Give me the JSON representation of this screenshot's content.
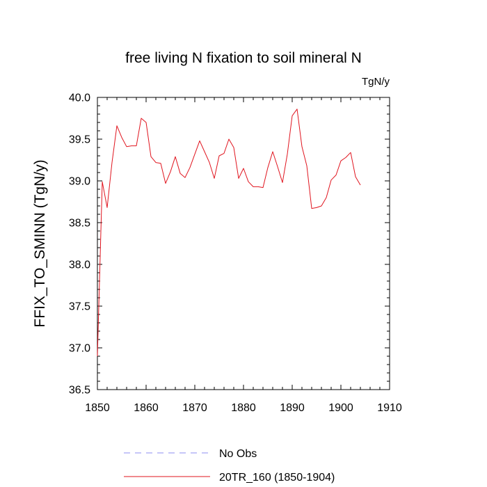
{
  "chart_data": {
    "type": "line",
    "title": "free living N fixation to soil mineral N",
    "units": "TgN/y",
    "ylabel": "FFIX_TO_SMINN  (TgN/y)",
    "xlabel": "",
    "xlim": [
      1850,
      1910
    ],
    "ylim": [
      36.5,
      40.0
    ],
    "xticks": [
      "1850",
      "1860",
      "1870",
      "1880",
      "1890",
      "1900",
      "1910"
    ],
    "yticks": [
      "36.5",
      "37.0",
      "37.5",
      "38.0",
      "38.5",
      "39.0",
      "39.5",
      "40.0"
    ],
    "grid": false,
    "legend_position": "bottom",
    "legend": [
      {
        "label": "No Obs",
        "color": "#8c8cf0",
        "style": "dashed"
      },
      {
        "label": "20TR_160 (1850-1904)",
        "color": "#e0141e",
        "style": "solid"
      }
    ],
    "series": [
      {
        "name": "20TR_160 (1850-1904)",
        "color": "#e0141e",
        "x": [
          1850,
          1851,
          1852,
          1853,
          1854,
          1855,
          1856,
          1857,
          1858,
          1859,
          1860,
          1861,
          1862,
          1863,
          1864,
          1865,
          1866,
          1867,
          1868,
          1869,
          1870,
          1871,
          1872,
          1873,
          1874,
          1875,
          1876,
          1877,
          1878,
          1879,
          1880,
          1881,
          1882,
          1883,
          1884,
          1885,
          1886,
          1887,
          1888,
          1889,
          1890,
          1891,
          1892,
          1893,
          1894,
          1895,
          1896,
          1897,
          1898,
          1899,
          1900,
          1901,
          1902,
          1903,
          1904
        ],
        "values": [
          36.9,
          38.99,
          38.68,
          39.22,
          39.66,
          39.52,
          39.41,
          39.42,
          39.42,
          39.75,
          39.7,
          39.29,
          39.22,
          39.21,
          38.97,
          39.11,
          39.29,
          39.09,
          39.04,
          39.16,
          39.32,
          39.48,
          39.35,
          39.22,
          39.03,
          39.3,
          39.33,
          39.5,
          39.4,
          39.03,
          39.15,
          38.99,
          38.93,
          38.93,
          38.92,
          39.16,
          39.35,
          39.17,
          38.98,
          39.32,
          39.78,
          39.86,
          39.41,
          39.18,
          38.67,
          38.68,
          38.7,
          38.8,
          39.01,
          39.07,
          39.24,
          39.28,
          39.34,
          39.05,
          38.95
        ]
      }
    ]
  }
}
